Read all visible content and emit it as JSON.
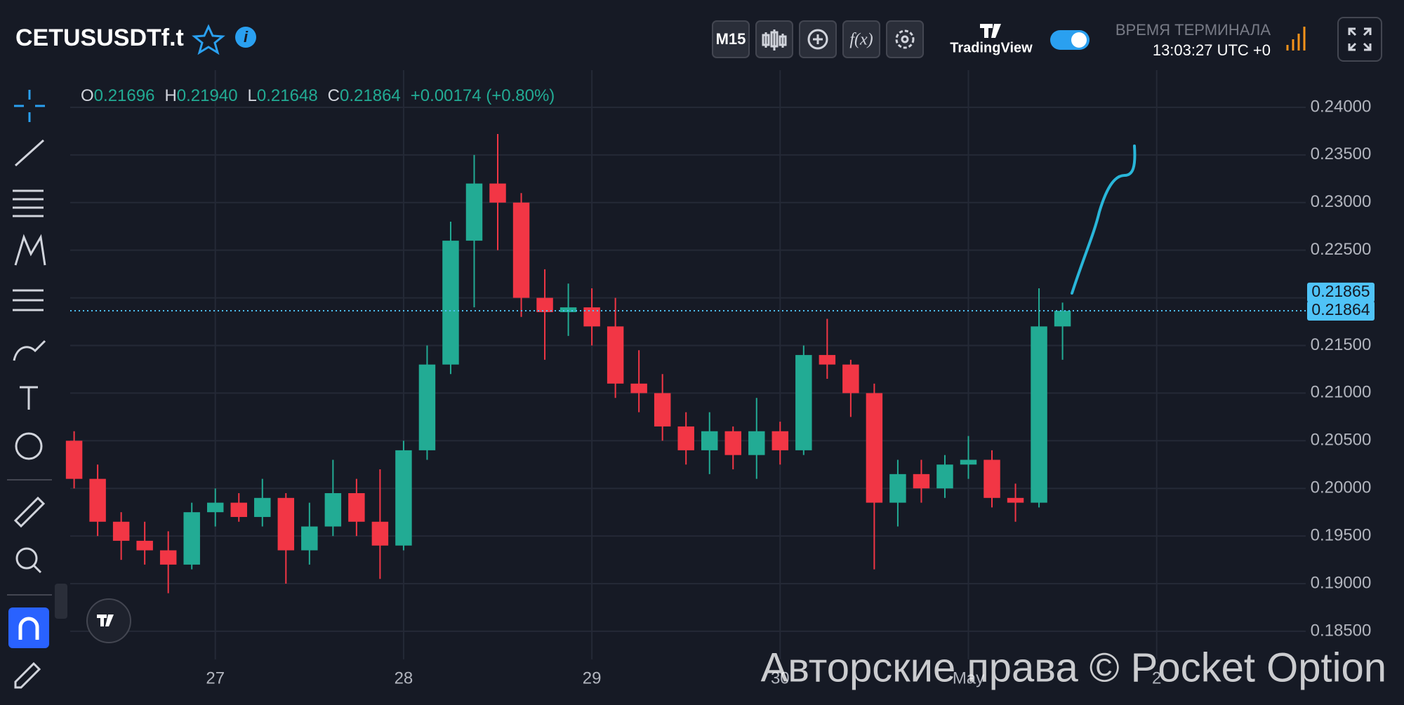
{
  "header": {
    "symbol": "CETUSUSDTf.t",
    "timeframe": "M15",
    "brand": "TradingView",
    "clock_title": "ВРЕМЯ ТЕРМИНАЛА",
    "clock_time": "13:03:27 UTC +0"
  },
  "watermark": "Авторские права © Pocket Option",
  "chart_data": {
    "type": "candlestick",
    "ohlc_header": [
      {
        "label": "O",
        "value": "0.21696"
      },
      {
        "label": "H",
        "value": "0.21940"
      },
      {
        "label": "L",
        "value": "0.21648"
      },
      {
        "label": "C",
        "value": "0.21864"
      }
    ],
    "change_label": "+0.00174 (+0.80%)",
    "up_color": "#22ab94",
    "down_color": "#f23645",
    "grid": true,
    "xlim": [
      -18.5,
      139
    ],
    "xticks": [
      {
        "value": 0,
        "label": "27"
      },
      {
        "value": 24,
        "label": "28"
      },
      {
        "value": 48,
        "label": "29"
      },
      {
        "value": 72,
        "label": "30"
      },
      {
        "value": 96,
        "label": "May"
      },
      {
        "value": 120,
        "label": "2"
      }
    ],
    "ylim": [
      0.18205,
      0.2439
    ],
    "yticks": [
      {
        "value": 0.185,
        "label": "0.18500"
      },
      {
        "value": 0.19,
        "label": "0.19000"
      },
      {
        "value": 0.195,
        "label": "0.19500"
      },
      {
        "value": 0.2,
        "label": "0.20000"
      },
      {
        "value": 0.205,
        "label": "0.20500"
      },
      {
        "value": 0.21,
        "label": "0.21000"
      },
      {
        "value": 0.215,
        "label": "0.21500"
      },
      {
        "value": 0.22,
        "label": "0.22000"
      },
      {
        "value": 0.225,
        "label": "0.22500"
      },
      {
        "value": 0.23,
        "label": "0.23000"
      },
      {
        "value": 0.235,
        "label": "0.23500"
      },
      {
        "value": 0.24,
        "label": "0.24000"
      }
    ],
    "price_labels": [
      0.21865,
      0.21864
    ],
    "last_price_color": "#4fc3f7",
    "x": [
      -18,
      -15,
      -12,
      -9,
      -6,
      -3,
      0,
      3,
      6,
      9,
      12,
      15,
      18,
      21,
      24,
      27,
      30,
      33,
      36,
      39,
      42,
      45,
      48,
      51,
      54,
      57,
      60,
      63,
      66,
      69,
      72,
      75,
      78,
      81,
      84,
      87,
      90,
      93,
      96,
      99,
      102,
      105,
      108
    ],
    "open": [
      0.205,
      0.201,
      0.1965,
      0.1945,
      0.1935,
      0.192,
      0.1975,
      0.1985,
      0.197,
      0.199,
      0.1935,
      0.196,
      0.1995,
      0.1965,
      0.194,
      0.204,
      0.213,
      0.226,
      0.232,
      0.23,
      0.22,
      0.2185,
      0.219,
      0.217,
      0.211,
      0.21,
      0.2065,
      0.204,
      0.206,
      0.2035,
      0.206,
      0.204,
      0.214,
      0.213,
      0.21,
      0.1985,
      0.2015,
      0.2,
      0.2025,
      0.203,
      0.199,
      0.1985,
      0.217
    ],
    "high": [
      0.206,
      0.2025,
      0.1975,
      0.1965,
      0.1955,
      0.1985,
      0.2,
      0.1995,
      0.201,
      0.1995,
      0.1985,
      0.203,
      0.201,
      0.202,
      0.205,
      0.215,
      0.228,
      0.235,
      0.2372,
      0.231,
      0.223,
      0.2215,
      0.221,
      0.22,
      0.2145,
      0.212,
      0.208,
      0.208,
      0.2065,
      0.2095,
      0.207,
      0.215,
      0.2178,
      0.2135,
      0.211,
      0.203,
      0.203,
      0.2035,
      0.2055,
      0.204,
      0.2005,
      0.221,
      0.2195
    ],
    "low": [
      0.2,
      0.195,
      0.1925,
      0.192,
      0.189,
      0.1915,
      0.196,
      0.1965,
      0.196,
      0.19,
      0.192,
      0.195,
      0.195,
      0.1905,
      0.1935,
      0.203,
      0.212,
      0.219,
      0.225,
      0.218,
      0.2135,
      0.216,
      0.215,
      0.2095,
      0.208,
      0.205,
      0.2025,
      0.2015,
      0.202,
      0.201,
      0.2025,
      0.2035,
      0.2115,
      0.2075,
      0.1915,
      0.196,
      0.1985,
      0.199,
      0.201,
      0.198,
      0.1965,
      0.198,
      0.2135
    ],
    "close": [
      0.201,
      0.1965,
      0.1945,
      0.1935,
      0.192,
      0.1975,
      0.1985,
      0.197,
      0.199,
      0.1935,
      0.196,
      0.1995,
      0.1965,
      0.194,
      0.204,
      0.213,
      0.226,
      0.232,
      0.23,
      0.22,
      0.2185,
      0.219,
      0.217,
      0.211,
      0.21,
      0.2065,
      0.204,
      0.206,
      0.2035,
      0.206,
      0.204,
      0.214,
      0.213,
      0.21,
      0.1985,
      0.2015,
      0.2,
      0.2025,
      0.203,
      0.199,
      0.1985,
      0.217,
      0.21864
    ]
  }
}
